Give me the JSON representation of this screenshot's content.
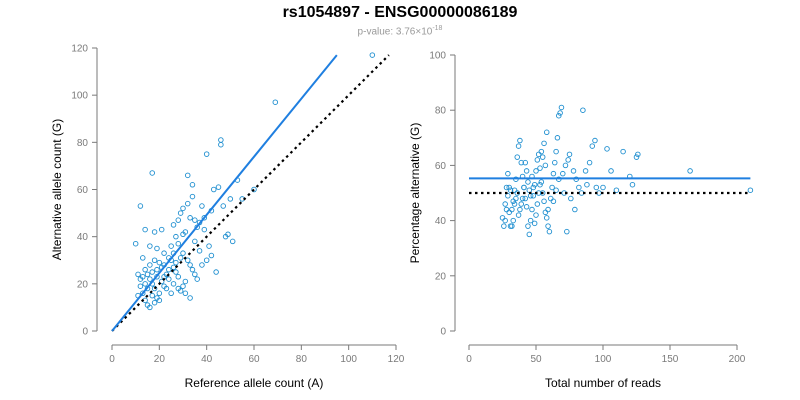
{
  "header": {
    "title": "rs1054897 - ENSG00000086189",
    "subtitle_prefix": "p-value: 3.76×10",
    "subtitle_exp": "-18"
  },
  "colors": {
    "points": "#1f8fd0",
    "fit": "#1f7fe0",
    "reference": "#000000",
    "axis": "#7a7a7a"
  },
  "chart_data": [
    {
      "type": "scatter",
      "xlabel": "Reference allele count (A)",
      "ylabel": "Alternative allele count (G)",
      "xlim": [
        0,
        120
      ],
      "ylim": [
        0,
        120
      ],
      "xticks": [
        0,
        20,
        40,
        60,
        80,
        100,
        120
      ],
      "yticks": [
        0,
        20,
        40,
        60,
        80,
        100,
        120
      ],
      "fit_line": {
        "from": [
          0,
          0
        ],
        "to": [
          95,
          117
        ]
      },
      "reference_line": {
        "from": [
          0,
          0
        ],
        "to": [
          117,
          117
        ]
      },
      "points": [
        [
          10,
          37
        ],
        [
          12,
          53
        ],
        [
          14,
          43
        ],
        [
          17,
          67
        ],
        [
          18,
          42
        ],
        [
          21,
          43
        ],
        [
          19,
          35
        ],
        [
          16,
          36
        ],
        [
          13,
          31
        ],
        [
          11,
          24
        ],
        [
          12,
          22
        ],
        [
          14,
          20
        ],
        [
          15,
          18
        ],
        [
          13,
          16
        ],
        [
          11,
          15
        ],
        [
          14,
          13
        ],
        [
          15,
          11
        ],
        [
          16,
          10
        ],
        [
          18,
          12
        ],
        [
          19,
          14
        ],
        [
          20,
          16
        ],
        [
          18,
          18
        ],
        [
          17,
          20
        ],
        [
          16,
          22
        ],
        [
          15,
          24
        ],
        [
          17,
          25
        ],
        [
          19,
          23
        ],
        [
          21,
          21
        ],
        [
          22,
          19
        ],
        [
          20,
          13
        ],
        [
          23,
          24
        ],
        [
          24,
          26
        ],
        [
          22,
          28
        ],
        [
          25,
          30
        ],
        [
          26,
          27
        ],
        [
          27,
          25
        ],
        [
          24,
          22
        ],
        [
          26,
          20
        ],
        [
          28,
          18
        ],
        [
          29,
          17
        ],
        [
          30,
          19
        ],
        [
          31,
          21
        ],
        [
          28,
          23
        ],
        [
          27,
          29
        ],
        [
          29,
          31
        ],
        [
          30,
          33
        ],
        [
          32,
          30
        ],
        [
          33,
          28
        ],
        [
          34,
          26
        ],
        [
          35,
          24
        ],
        [
          36,
          22
        ],
        [
          31,
          16
        ],
        [
          33,
          14
        ],
        [
          25,
          36
        ],
        [
          27,
          40
        ],
        [
          26,
          45
        ],
        [
          28,
          47
        ],
        [
          29,
          50
        ],
        [
          30,
          52
        ],
        [
          32,
          54
        ],
        [
          31,
          42
        ],
        [
          33,
          48
        ],
        [
          34,
          57
        ],
        [
          35,
          38
        ],
        [
          36,
          44
        ],
        [
          37,
          46
        ],
        [
          38,
          53
        ],
        [
          39,
          48
        ],
        [
          40,
          75
        ],
        [
          42,
          51
        ],
        [
          43,
          60
        ],
        [
          45,
          61
        ],
        [
          46,
          79
        ],
        [
          46,
          81
        ],
        [
          47,
          53
        ],
        [
          48,
          40
        ],
        [
          49,
          41
        ],
        [
          50,
          56
        ],
        [
          51,
          38
        ],
        [
          53,
          64
        ],
        [
          55,
          56
        ],
        [
          44,
          25
        ],
        [
          42,
          32
        ],
        [
          41,
          36
        ],
        [
          40,
          30
        ],
        [
          38,
          28
        ],
        [
          37,
          34
        ],
        [
          34,
          62
        ],
        [
          32,
          66
        ],
        [
          69,
          97
        ],
        [
          110,
          117
        ],
        [
          20,
          29
        ],
        [
          22,
          33
        ],
        [
          24,
          31
        ],
        [
          21,
          27
        ],
        [
          19,
          26
        ],
        [
          23,
          18
        ],
        [
          25,
          16
        ],
        [
          18,
          30
        ],
        [
          16,
          28
        ],
        [
          14,
          26
        ],
        [
          12,
          19
        ],
        [
          13,
          23
        ],
        [
          17,
          15
        ],
        [
          22,
          23
        ],
        [
          26,
          33
        ],
        [
          35,
          47
        ],
        [
          28,
          37
        ],
        [
          30,
          41
        ],
        [
          39,
          43
        ],
        [
          60,
          60
        ]
      ]
    },
    {
      "type": "scatter",
      "xlabel": "Total number of reads",
      "ylabel": "Percentage alternative (G)",
      "xlim": [
        0,
        200
      ],
      "ylim": [
        0,
        100
      ],
      "xticks": [
        0,
        50,
        100,
        150,
        200
      ],
      "yticks": [
        0,
        20,
        40,
        60,
        80,
        100
      ],
      "fit_line": {
        "y": 55.3,
        "x_from": 0,
        "x_to": 210
      },
      "reference_line": {
        "y": 50,
        "x_from": 0,
        "x_to": 210
      },
      "points": [
        [
          25,
          41
        ],
        [
          27,
          46
        ],
        [
          28,
          52
        ],
        [
          29,
          57
        ],
        [
          30,
          43
        ],
        [
          31,
          38
        ],
        [
          32,
          44
        ],
        [
          33,
          47
        ],
        [
          34,
          51
        ],
        [
          35,
          55
        ],
        [
          36,
          63
        ],
        [
          37,
          67
        ],
        [
          38,
          69
        ],
        [
          39,
          61
        ],
        [
          40,
          56
        ],
        [
          41,
          52
        ],
        [
          42,
          48
        ],
        [
          43,
          45
        ],
        [
          44,
          38
        ],
        [
          45,
          35
        ],
        [
          46,
          40
        ],
        [
          47,
          44
        ],
        [
          48,
          49
        ],
        [
          49,
          53
        ],
        [
          50,
          58
        ],
        [
          51,
          62
        ],
        [
          52,
          64
        ],
        [
          53,
          59
        ],
        [
          54,
          54
        ],
        [
          55,
          50
        ],
        [
          56,
          47
        ],
        [
          57,
          43
        ],
        [
          58,
          41
        ],
        [
          59,
          38
        ],
        [
          60,
          36
        ],
        [
          61,
          48
        ],
        [
          62,
          52
        ],
        [
          63,
          57
        ],
        [
          64,
          61
        ],
        [
          65,
          65
        ],
        [
          66,
          70
        ],
        [
          67,
          78
        ],
        [
          68,
          79
        ],
        [
          69,
          81
        ],
        [
          58,
          72
        ],
        [
          56,
          68
        ],
        [
          54,
          65
        ],
        [
          53,
          53
        ],
        [
          52,
          50
        ],
        [
          51,
          46
        ],
        [
          50,
          42
        ],
        [
          49,
          39
        ],
        [
          48,
          52
        ],
        [
          47,
          56
        ],
        [
          46,
          49
        ],
        [
          45,
          51
        ],
        [
          44,
          54
        ],
        [
          43,
          58
        ],
        [
          42,
          61
        ],
        [
          41,
          52
        ],
        [
          40,
          48
        ],
        [
          39,
          46
        ],
        [
          38,
          44
        ],
        [
          37,
          42
        ],
        [
          36,
          50
        ],
        [
          35,
          48
        ],
        [
          34,
          46
        ],
        [
          33,
          40
        ],
        [
          32,
          38
        ],
        [
          31,
          51
        ],
        [
          29,
          49
        ],
        [
          28,
          44
        ],
        [
          27,
          40
        ],
        [
          26,
          38
        ],
        [
          30,
          52
        ],
        [
          70,
          57
        ],
        [
          72,
          60
        ],
        [
          74,
          62
        ],
        [
          75,
          64
        ],
        [
          78,
          58
        ],
        [
          80,
          55
        ],
        [
          82,
          52
        ],
        [
          84,
          50
        ],
        [
          85,
          80
        ],
        [
          87,
          58
        ],
        [
          90,
          61
        ],
        [
          92,
          67
        ],
        [
          94,
          69
        ],
        [
          95,
          52
        ],
        [
          97,
          50
        ],
        [
          100,
          52
        ],
        [
          103,
          66
        ],
        [
          106,
          58
        ],
        [
          110,
          51
        ],
        [
          115,
          65
        ],
        [
          120,
          56
        ],
        [
          122,
          53
        ],
        [
          125,
          63
        ],
        [
          126,
          64
        ],
        [
          165,
          58
        ],
        [
          210,
          51
        ],
        [
          76,
          48
        ],
        [
          79,
          44
        ],
        [
          73,
          36
        ],
        [
          71,
          50
        ],
        [
          67,
          55
        ],
        [
          63,
          47
        ],
        [
          59,
          44
        ],
        [
          57,
          60
        ],
        [
          55,
          63
        ],
        [
          65,
          51
        ],
        [
          88,
          53
        ]
      ]
    }
  ]
}
